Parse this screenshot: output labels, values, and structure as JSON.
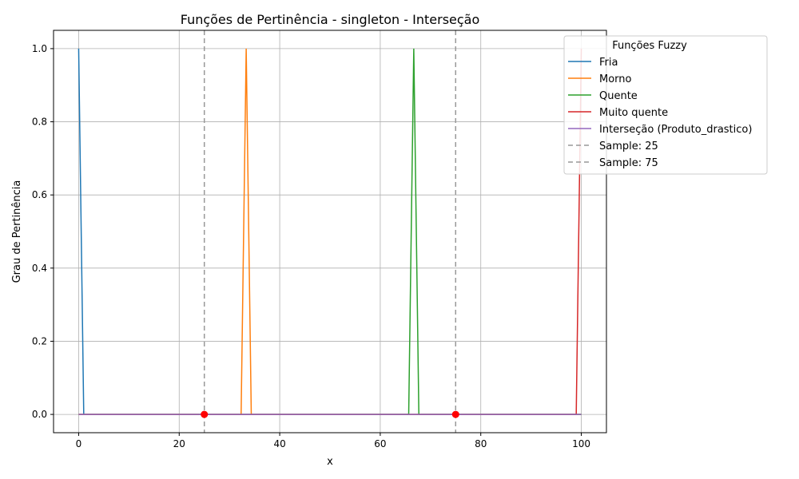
{
  "chart_data": {
    "type": "line",
    "title": "Funções de Pertinência - singleton - Interseção",
    "xlabel": "x",
    "ylabel": "Grau de Pertinência",
    "xlim": [
      -5,
      105
    ],
    "ylim": [
      -0.05,
      1.05
    ],
    "x_ticks": [
      0,
      20,
      40,
      60,
      80,
      100
    ],
    "x_tick_labels": [
      "0",
      "20",
      "40",
      "60",
      "80",
      "100"
    ],
    "y_ticks": [
      0.0,
      0.2,
      0.4,
      0.6,
      0.8,
      1.0
    ],
    "y_tick_labels": [
      "0.0",
      "0.2",
      "0.4",
      "0.6",
      "0.8",
      "1.0"
    ],
    "grid": true,
    "legend": {
      "title": "Funções Fuzzy",
      "placement": "top-right"
    },
    "series": [
      {
        "name": "Fria",
        "color": "#1f77b4",
        "dash": false,
        "x": [
          0,
          1.01,
          100
        ],
        "y": [
          1.0,
          0.0,
          0.0
        ]
      },
      {
        "name": "Morno",
        "color": "#ff7f0e",
        "dash": false,
        "x": [
          0,
          32.32,
          33.33,
          34.34,
          100
        ],
        "y": [
          0.0,
          0.0,
          1.0,
          0.0,
          0.0
        ]
      },
      {
        "name": "Quente",
        "color": "#2ca02c",
        "dash": false,
        "x": [
          0,
          65.66,
          66.67,
          67.68,
          100
        ],
        "y": [
          0.0,
          0.0,
          1.0,
          0.0,
          0.0
        ]
      },
      {
        "name": "Muito quente",
        "color": "#d62728",
        "dash": false,
        "x": [
          0,
          98.99,
          100
        ],
        "y": [
          0.0,
          0.0,
          1.0
        ]
      },
      {
        "name": "Interseção (Produto_drastico)",
        "color": "#9467bd",
        "dash": false,
        "x": [
          0,
          100
        ],
        "y": [
          0.0,
          0.0
        ]
      },
      {
        "name": "Sample: 25",
        "color": "#999999",
        "dash": true,
        "vline": 25
      },
      {
        "name": "Sample: 75",
        "color": "#999999",
        "dash": true,
        "vline": 75
      }
    ],
    "markers": {
      "color": "#ff0000",
      "points": [
        {
          "x": 25,
          "y": 0.0
        },
        {
          "x": 75,
          "y": 0.0
        }
      ]
    }
  }
}
